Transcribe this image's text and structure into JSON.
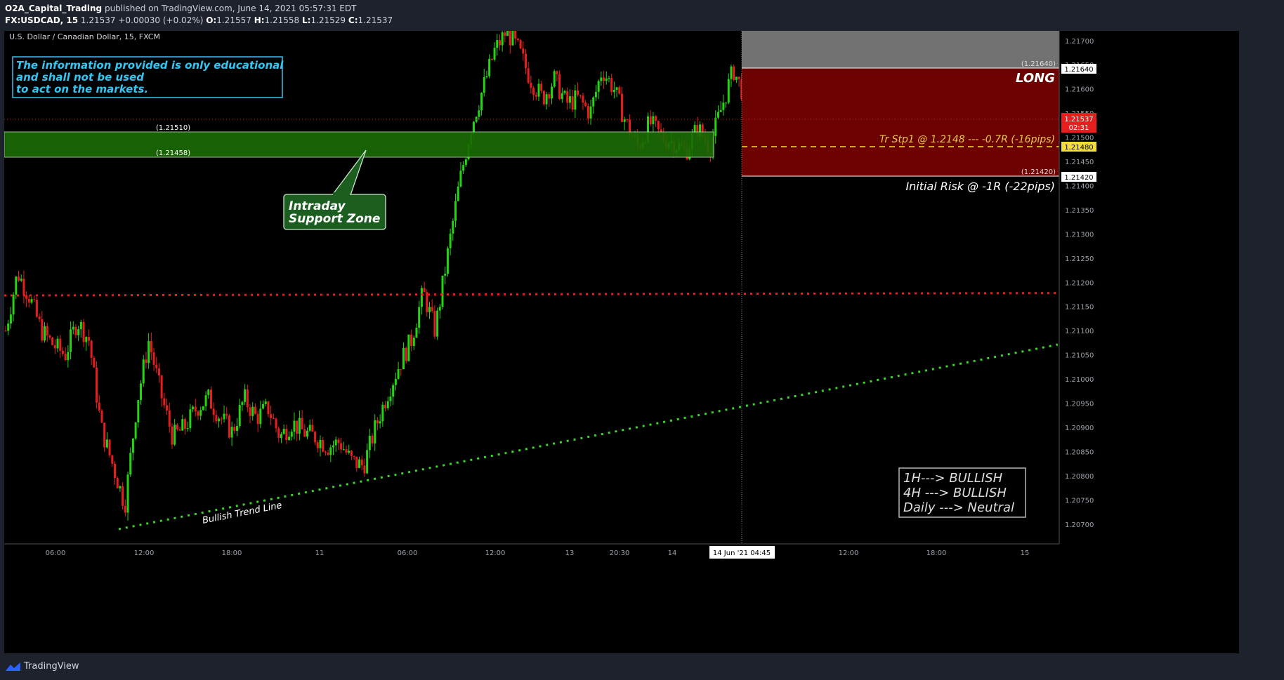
{
  "header": {
    "author": "O2A_Capital_Trading",
    "published": "published on TradingView.com, June 14, 2021 05:57:31 EDT",
    "symbol": "FX:USDCAD, 15",
    "last": "1.21537",
    "change": "+0.00030 (+0.02%)",
    "o_label": "O:",
    "o": "1.21557",
    "h_label": "H:",
    "h": "1.21558",
    "l_label": "L:",
    "l": "1.21529",
    "c_label": "C:",
    "c": "1.21537"
  },
  "chart": {
    "legend": "U.S. Dollar / Canadian Dollar, 15, FXCM",
    "disclaimer": [
      "The information provided is only educational",
      "and shall not be used",
      "to act on the markets."
    ],
    "support_zone": {
      "label": [
        "Intraday",
        "Support Zone"
      ],
      "top_label": "(1.21510)",
      "bottom_label": "(1.21458)",
      "top": 1.2151,
      "bottom": 1.21458
    },
    "position": {
      "label": "LONG",
      "target_label": "(1.21640)",
      "target": 1.2164,
      "stop_label": "(1.21420)",
      "stop": 1.2142,
      "trail_stop_text": "Tr Stp1 @ 1.2148 --- -0.7R (-16pips)",
      "trail_stop": 1.2148,
      "risk_text": "Initial Risk @ -1R (-22pips)"
    },
    "trend_label": "Bullish Trend Line",
    "bias": [
      "1H---> BULLISH",
      "4H ---> BULLISH",
      "Daily ---> Neutral"
    ],
    "price_badges": {
      "current": "1.21537",
      "countdown": "02:31",
      "target": "1.21640",
      "trail": "1.21480",
      "stop": "1.21420"
    },
    "time_badge": "14 Jun '21   04:45"
  },
  "chart_data": {
    "type": "candlestick",
    "title": "U.S. Dollar / Canadian Dollar, 15, FXCM",
    "y_ticks": [
      "1.21700",
      "1.21650",
      "1.21600",
      "1.21550",
      "1.21500",
      "1.21450",
      "1.21400",
      "1.21350",
      "1.21300",
      "1.21250",
      "1.21200",
      "1.21150",
      "1.21100",
      "1.21050",
      "1.21000",
      "1.20950",
      "1.20900",
      "1.20850",
      "1.20800",
      "1.20750",
      "1.20700"
    ],
    "ylim": [
      1.20675,
      1.2172
    ],
    "x_ticks": [
      "06:00",
      "12:00",
      "18:00",
      "11",
      "06:00",
      "12:00",
      "13",
      "20:30",
      "14",
      "12:00",
      "18:00",
      "15"
    ],
    "horizontal_levels": {
      "red_dotted": 1.2118,
      "current_price": 1.21537
    },
    "trend_line": {
      "start_price": 1.207,
      "end_price": 1.21075
    },
    "close_path": [
      1.211,
      1.2122,
      1.2117,
      1.211,
      1.2107,
      1.2105,
      1.2112,
      1.2108,
      1.209,
      1.2082,
      1.2074,
      1.2095,
      1.2108,
      1.2097,
      1.2088,
      1.209,
      1.2094,
      1.2096,
      1.2092,
      1.2089,
      1.2096,
      1.2092,
      1.2094,
      1.2088,
      1.2091,
      1.2089,
      1.2088,
      1.2086,
      1.2087,
      1.2083,
      1.2082,
      1.209,
      1.2097,
      1.2103,
      1.2108,
      1.2118,
      1.211,
      1.2125,
      1.214,
      1.2152,
      1.216,
      1.2168,
      1.2172,
      1.2168,
      1.2162,
      1.2158,
      1.2162,
      1.2157,
      1.2158,
      1.2155,
      1.2164,
      1.216,
      1.2153,
      1.2148,
      1.2153,
      1.215,
      1.2149,
      1.2147,
      1.2152,
      1.2148,
      1.2156,
      1.2164,
      1.2158,
      1.2154
    ],
    "candles_total": 290
  },
  "colors": {
    "up": "#22d611",
    "down": "#e81d1d",
    "zone": "#1b6a05",
    "long_fill": "#6d0202",
    "target_fill": "#727272",
    "trail": "#f2de36",
    "disclaimer": "#33c6f2",
    "trend": "#39d728"
  },
  "footer": {
    "brand": "TradingView"
  }
}
